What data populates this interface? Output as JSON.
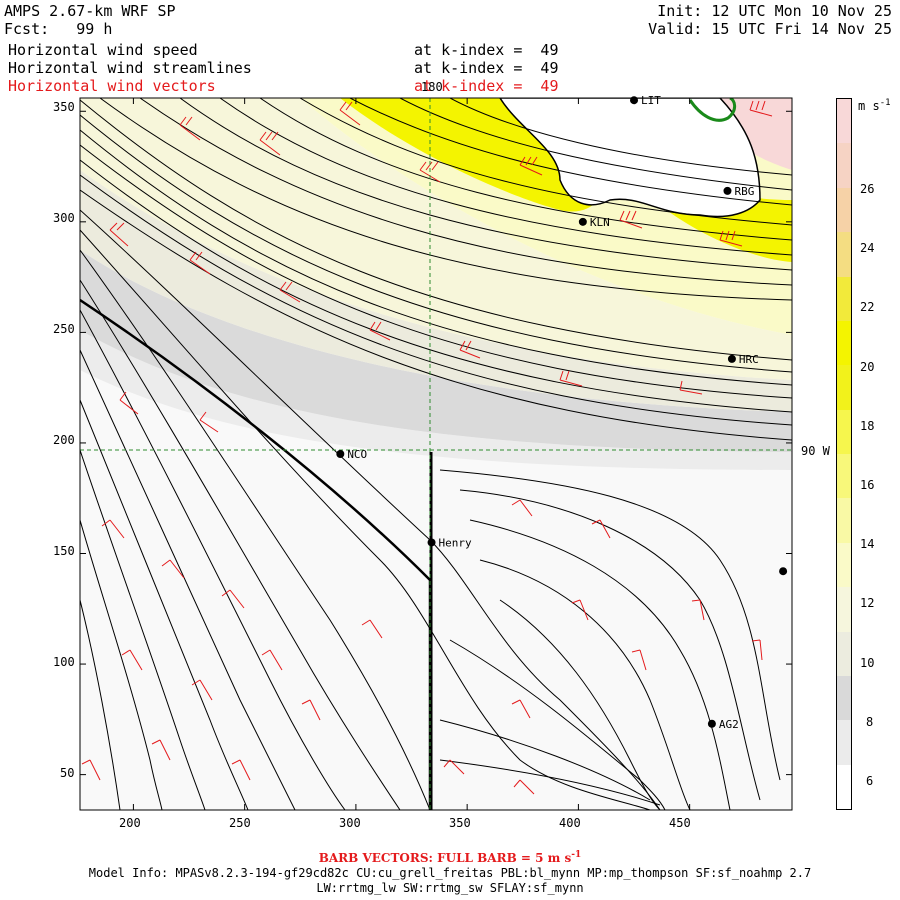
{
  "header": {
    "title": "AMPS 2.67-km WRF SP",
    "forecast": "Fcst:   99 h",
    "init": "Init: 12 UTC Mon 10 Nov 25",
    "valid": "Valid: 15 UTC Fri 14 Nov 25"
  },
  "fields": [
    {
      "name": "Horizontal wind speed",
      "level": "at k-index =  49",
      "color": "#000000"
    },
    {
      "name": "Horizontal wind streamlines",
      "level": "at k-index =  49",
      "color": "#000000"
    },
    {
      "name": "Horizontal wind vectors",
      "level": "at k-index =  49",
      "color": "#e41a1c"
    }
  ],
  "map": {
    "x_ticks": [
      "200",
      "250",
      "300",
      "350",
      "400",
      "450"
    ],
    "y_ticks": [
      "350",
      "300",
      "250",
      "200",
      "150",
      "100",
      "50"
    ],
    "meridian_label": "180",
    "parallel_label": "90 W",
    "stations": [
      {
        "name": "LIT",
        "x": 425,
        "y": 355
      },
      {
        "name": "RBG",
        "x": 467,
        "y": 314
      },
      {
        "name": "KLN",
        "x": 402,
        "y": 300
      },
      {
        "name": "HRC",
        "x": 469,
        "y": 238
      },
      {
        "name": "NCO",
        "x": 293,
        "y": 195
      },
      {
        "name": "Henry",
        "x": 334,
        "y": 155
      },
      {
        "name": "",
        "x": 492,
        "y": 142
      },
      {
        "name": "AG2",
        "x": 460,
        "y": 73
      }
    ]
  },
  "colorbar": {
    "units": "m s-1",
    "labels": [
      "26",
      "24",
      "22",
      "20",
      "18",
      "16",
      "14",
      "12",
      "10",
      "8",
      "6"
    ],
    "colors": [
      "#ffffff",
      "#ebebeb",
      "#d9d9d9",
      "#ececdf",
      "#f6f6dd",
      "#fafac8",
      "#f9f9a5",
      "#f8f87a",
      "#f6f64d",
      "#f2f21b",
      "#f4f400",
      "#f2ea3a",
      "#f4dd82",
      "#f6d2a7",
      "#f6d3c4",
      "#f8d8d8"
    ]
  },
  "footer": {
    "barb_caption": "BARB VECTORS:  FULL BARB = 5 m s",
    "barb_exp": "-1",
    "model_info_1": "Model Info: MPASv8.2.3-194-gf29cd82c CU:cu_grell_freitas PBL:bl_mynn MP:mp_thompson SF:sf_noahmp 2.7",
    "model_info_2": "LW:rrtmg_lw SW:rrtmg_sw SFLAY:sf_mynn"
  }
}
